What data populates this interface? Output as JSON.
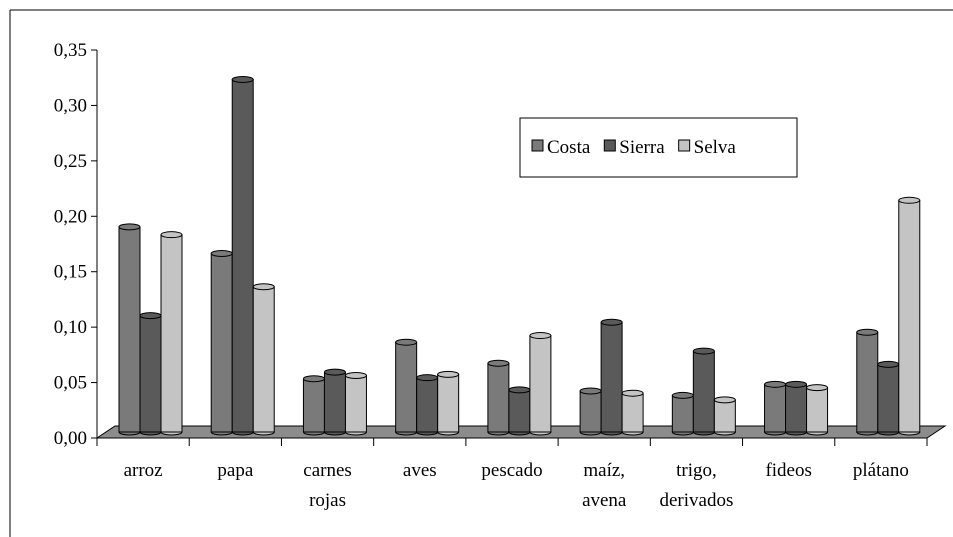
{
  "chart_data": {
    "type": "bar3d",
    "categories": [
      "arroz",
      "papa",
      "carnes rojas",
      "aves",
      "pescado",
      "maíz, avena",
      "trigo, derivados",
      "fideos",
      "plátano"
    ],
    "series": [
      {
        "name": "Costa",
        "color": "#7a7a7a",
        "values": [
          0.185,
          0.161,
          0.048,
          0.081,
          0.062,
          0.037,
          0.033,
          0.043,
          0.09
        ]
      },
      {
        "name": "Sierra",
        "color": "#5a5a5a",
        "values": [
          0.105,
          0.318,
          0.054,
          0.049,
          0.038,
          0.099,
          0.073,
          0.043,
          0.061
        ]
      },
      {
        "name": "Selva",
        "color": "#c4c4c4",
        "values": [
          0.178,
          0.131,
          0.051,
          0.052,
          0.087,
          0.035,
          0.029,
          0.04,
          0.209
        ]
      }
    ],
    "ylim": [
      0,
      0.35
    ],
    "yticks": [
      {
        "value": 0,
        "label": "0,00"
      },
      {
        "value": 0.05,
        "label": "0,05"
      },
      {
        "value": 0.1,
        "label": "0,10"
      },
      {
        "value": 0.15,
        "label": "0,15"
      },
      {
        "value": 0.2,
        "label": "0,20"
      },
      {
        "value": 0.25,
        "label": "0,25"
      },
      {
        "value": 0.3,
        "label": "0,30"
      },
      {
        "value": 0.35,
        "label": "0,35"
      }
    ],
    "legend": "top-right"
  }
}
